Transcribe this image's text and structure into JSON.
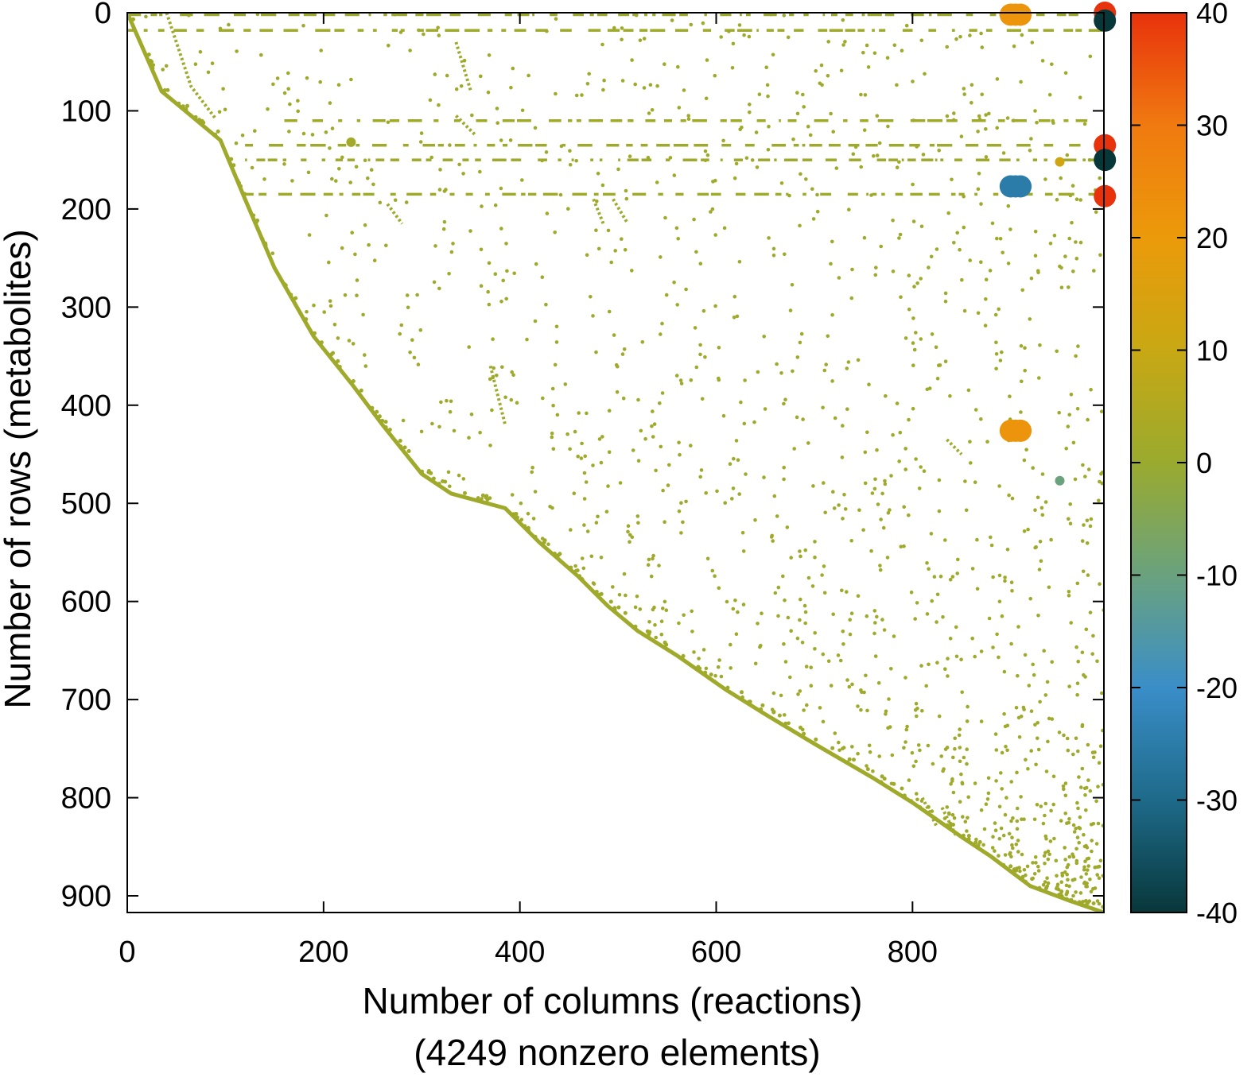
{
  "chart_data": {
    "type": "scatter",
    "subtype": "sparsity-pattern",
    "xlabel": "Number of columns (reactions)",
    "xlabel_sub": "(4249 nonzero elements)",
    "ylabel": "Number of rows (metabolites)",
    "xlim": [
      0,
      995
    ],
    "ylim": [
      917,
      0
    ],
    "xticks": [
      0,
      200,
      400,
      600,
      800
    ],
    "yticks": [
      0,
      100,
      200,
      300,
      400,
      500,
      600,
      700,
      800,
      900
    ],
    "colorbar": {
      "ticks": [
        40,
        30,
        20,
        10,
        0,
        -10,
        -20,
        -30,
        -40
      ],
      "range": [
        -40,
        40
      ],
      "stops": [
        {
          "v": -40,
          "color": "#08373a"
        },
        {
          "v": -30,
          "color": "#1e6a8a"
        },
        {
          "v": -20,
          "color": "#3a8ec8"
        },
        {
          "v": -10,
          "color": "#6aa27e"
        },
        {
          "v": 0,
          "color": "#9aaa2e"
        },
        {
          "v": 10,
          "color": "#c8a814"
        },
        {
          "v": 20,
          "color": "#eb9a0a"
        },
        {
          "v": 30,
          "color": "#f07a10"
        },
        {
          "v": 40,
          "color": "#e8320c"
        }
      ]
    },
    "default_value": 1,
    "diagonal_band": [
      [
        0,
        0
      ],
      [
        35,
        80
      ],
      [
        65,
        105
      ],
      [
        95,
        130
      ],
      [
        120,
        190
      ],
      [
        150,
        260
      ],
      [
        190,
        330
      ],
      [
        230,
        380
      ],
      [
        260,
        420
      ],
      [
        300,
        470
      ],
      [
        330,
        490
      ],
      [
        385,
        505
      ],
      [
        420,
        540
      ],
      [
        460,
        575
      ],
      [
        490,
        605
      ],
      [
        520,
        630
      ],
      [
        560,
        655
      ],
      [
        610,
        690
      ],
      [
        650,
        715
      ],
      [
        700,
        745
      ],
      [
        760,
        780
      ],
      [
        800,
        805
      ],
      [
        850,
        840
      ],
      [
        880,
        860
      ],
      [
        920,
        890
      ],
      [
        960,
        905
      ],
      [
        995,
        917
      ]
    ],
    "secondary_diagonals": [
      [
        [
          40,
          0
        ],
        [
          65,
          75
        ],
        [
          90,
          108
        ]
      ],
      [
        [
          335,
          30
        ],
        [
          350,
          80
        ]
      ],
      [
        [
          335,
          105
        ],
        [
          355,
          125
        ]
      ],
      [
        [
          370,
          360
        ],
        [
          385,
          420
        ]
      ],
      [
        [
          475,
          190
        ],
        [
          485,
          215
        ]
      ],
      [
        [
          495,
          190
        ],
        [
          510,
          215
        ]
      ],
      [
        [
          265,
          195
        ],
        [
          280,
          215
        ]
      ],
      [
        [
          810,
          800
        ],
        [
          825,
          830
        ]
      ],
      [
        [
          830,
          810
        ],
        [
          845,
          840
        ]
      ],
      [
        [
          835,
          435
        ],
        [
          850,
          450
        ]
      ]
    ],
    "row_bands": [
      {
        "row": 2,
        "x": [
          0,
          1000
        ]
      },
      {
        "row": 18,
        "x": [
          0,
          1000
        ]
      },
      {
        "row": 110,
        "x": [
          160,
          1000
        ]
      },
      {
        "row": 135,
        "x": [
          120,
          1000
        ]
      },
      {
        "row": 150,
        "x": [
          120,
          1000
        ]
      },
      {
        "row": 185,
        "x": [
          120,
          1000
        ]
      }
    ],
    "highlighted_points": [
      {
        "x": 900,
        "y": 2,
        "v": 22
      },
      {
        "x": 905,
        "y": 2,
        "v": 22
      },
      {
        "x": 910,
        "y": 2,
        "v": 22
      },
      {
        "x": 996,
        "y": 0,
        "v": 40
      },
      {
        "x": 996,
        "y": 8,
        "v": -40
      },
      {
        "x": 996,
        "y": 135,
        "v": 40
      },
      {
        "x": 996,
        "y": 150,
        "v": -40
      },
      {
        "x": 996,
        "y": 187,
        "v": 40
      },
      {
        "x": 900,
        "y": 177,
        "v": -25
      },
      {
        "x": 905,
        "y": 177,
        "v": -25
      },
      {
        "x": 910,
        "y": 177,
        "v": -25
      },
      {
        "x": 900,
        "y": 426,
        "v": 22
      },
      {
        "x": 905,
        "y": 426,
        "v": 22
      },
      {
        "x": 910,
        "y": 426,
        "v": 22
      },
      {
        "x": 950,
        "y": 477,
        "v": -10
      },
      {
        "x": 228,
        "y": 132,
        "v": 2
      },
      {
        "x": 950,
        "y": 152,
        "v": 12
      }
    ]
  }
}
